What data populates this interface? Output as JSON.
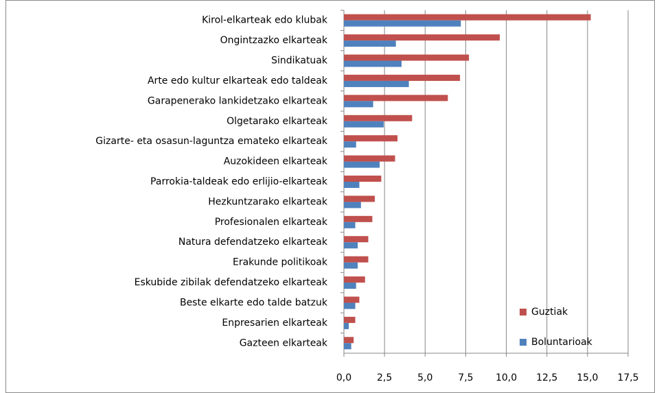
{
  "chart_data": {
    "type": "hbar",
    "categories": [
      "Kirol-elkarteak edo klubak",
      "Ongintzazko elkarteak",
      "Sindikatuak",
      "Arte edo kultur elkarteak edo taldeak",
      "Garapenerako lankidetzako elkarteak",
      "Olgetarako elkarteak",
      "Gizarte- eta osasun-laguntza emateko elkarteak",
      "Auzokideen elkarteak",
      "Parrokia-taldeak edo erlijio-elkarteak",
      "Hezkuntzarako elkarteak",
      "Profesionalen elkarteak",
      "Natura defendatzeko elkarteak",
      "Erakunde politikoak",
      "Eskubide zibilak defendatzeko elkarteak",
      "Beste elkarte edo talde batzuk",
      "Enpresarien elkarteak",
      "Gazteen elkarteak"
    ],
    "series": [
      {
        "name": "Guztiak",
        "color": "#c0504d",
        "values": [
          15.2,
          9.6,
          7.7,
          7.15,
          6.4,
          4.2,
          3.3,
          3.15,
          2.3,
          1.9,
          1.75,
          1.5,
          1.5,
          1.3,
          0.95,
          0.7,
          0.6
        ]
      },
      {
        "name": "Boluntarioak",
        "color": "#4f81bd",
        "values": [
          7.2,
          3.2,
          3.55,
          4.0,
          1.8,
          2.45,
          0.75,
          2.2,
          0.95,
          1.05,
          0.7,
          0.85,
          0.85,
          0.75,
          0.7,
          0.3,
          0.45
        ]
      }
    ],
    "xlim": [
      0,
      17.5
    ],
    "xticks": [
      {
        "value": 0,
        "label": "0,0"
      },
      {
        "value": 2.5,
        "label": "2,5"
      },
      {
        "value": 5,
        "label": "5,0"
      },
      {
        "value": 7.5,
        "label": "7,5"
      },
      {
        "value": 10,
        "label": "10,0"
      },
      {
        "value": 12.5,
        "label": "12,5"
      },
      {
        "value": 15,
        "label": "15,0"
      },
      {
        "value": 17.5,
        "label": "17,5"
      }
    ],
    "grid": true,
    "legend": "lower-right"
  }
}
